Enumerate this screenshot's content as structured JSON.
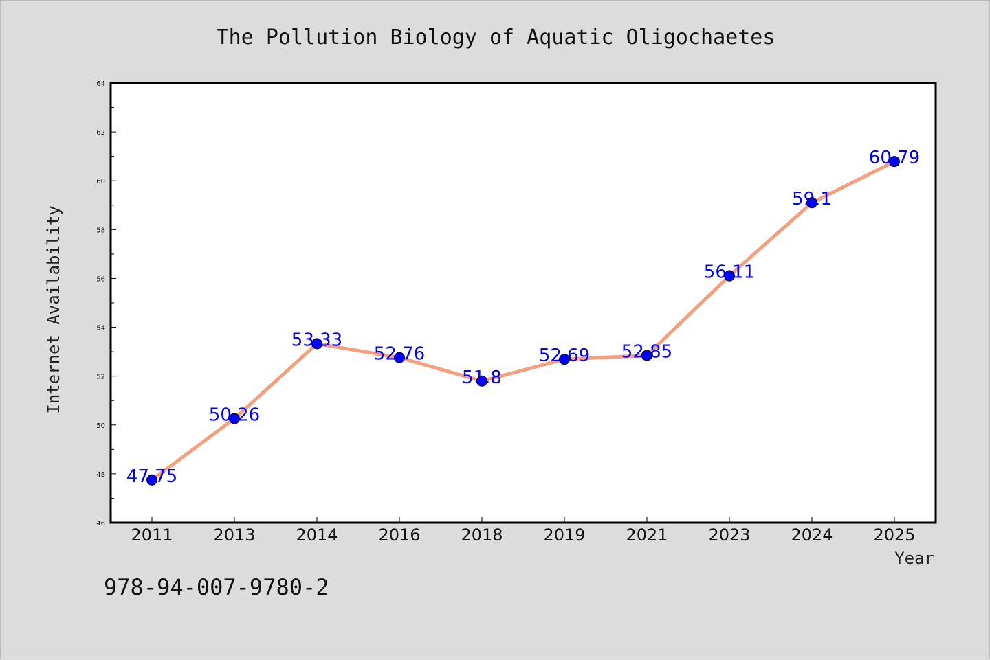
{
  "chart_data": {
    "type": "line",
    "title": "The Pollution Biology of Aquatic Oligochaetes",
    "xlabel": "Year",
    "ylabel": "Internet Availability",
    "categories": [
      "2011",
      "2013",
      "2014",
      "2016",
      "2018",
      "2019",
      "2021",
      "2023",
      "2024",
      "2025"
    ],
    "series": [
      {
        "values": [
          47.75,
          50.26,
          53.33,
          52.76,
          51.8,
          52.69,
          52.85,
          56.11,
          59.1,
          60.79
        ],
        "labels": [
          "47.75",
          "50.26",
          "53.33",
          "52.76",
          "51.8",
          "52.69",
          "52.85",
          "56.11",
          "59.1",
          "60.79"
        ],
        "line_color": "#f4a07f",
        "marker_color": "#0000ff"
      }
    ],
    "ylim": [
      46,
      64
    ],
    "yticks": [
      "46",
      "48",
      "50",
      "52",
      "54",
      "56",
      "58",
      "60",
      "62",
      "64"
    ],
    "grid": false,
    "legend": "none"
  },
  "footer": {
    "isbn": "978-94-007-9780-2"
  }
}
